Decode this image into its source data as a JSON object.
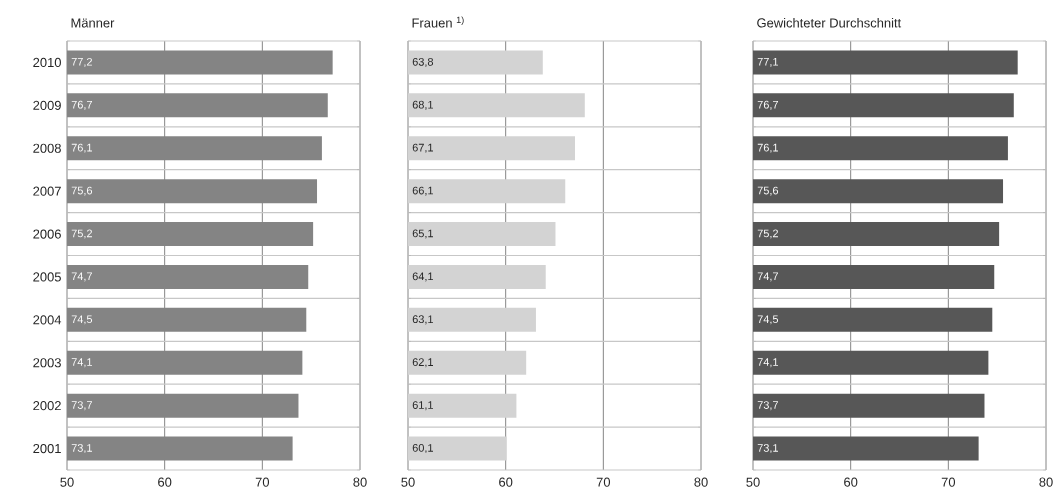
{
  "chart_data": [
    {
      "type": "bar",
      "orientation": "horizontal",
      "title": "Männer",
      "color": "#848484",
      "categories": [
        "2010",
        "2009",
        "2008",
        "2007",
        "2006",
        "2005",
        "2004",
        "2003",
        "2002",
        "2001"
      ],
      "values": [
        77.2,
        76.7,
        76.1,
        75.6,
        75.2,
        74.7,
        74.5,
        74.1,
        73.7,
        73.1
      ],
      "value_labels": [
        "77,2",
        "76,7",
        "76,1",
        "75,6",
        "75,2",
        "74,7",
        "74,5",
        "74,1",
        "73,7",
        "73,1"
      ],
      "xlim": [
        50,
        80
      ],
      "xticks": [
        50,
        60,
        70,
        80
      ],
      "grid": true
    },
    {
      "type": "bar",
      "orientation": "horizontal",
      "title": "Frauen $^{1)}$",
      "color": "#d3d3d3",
      "categories": [
        "2010",
        "2009",
        "2008",
        "2007",
        "2006",
        "2005",
        "2004",
        "2003",
        "2002",
        "2001"
      ],
      "values": [
        63.8,
        68.1,
        67.1,
        66.1,
        65.1,
        64.1,
        63.1,
        62.1,
        61.1,
        60.1
      ],
      "value_labels": [
        "63,8",
        "68,1",
        "67,1",
        "66,1",
        "65,1",
        "64,1",
        "63,1",
        "62,1",
        "61,1",
        "60,1"
      ],
      "xlim": [
        50,
        80
      ],
      "xticks": [
        50,
        60,
        70,
        80
      ],
      "grid": true,
      "tick_labels": "x"
    },
    {
      "type": "bar",
      "orientation": "horizontal",
      "title": "Gewichteter Durchschnitt",
      "color": "#575757",
      "categories": [
        "2010",
        "2009",
        "2008",
        "2007",
        "2006",
        "2005",
        "2004",
        "2003",
        "2002",
        "2001"
      ],
      "values": [
        77.1,
        76.7,
        76.1,
        75.6,
        75.2,
        74.7,
        74.5,
        74.1,
        73.7,
        73.1
      ],
      "value_labels": [
        "77,1",
        "76,7",
        "76,1",
        "75,6",
        "75,2",
        "74,7",
        "74,5",
        "74,1",
        "73,7",
        "73,1"
      ],
      "xlim": [
        50,
        80
      ],
      "xticks": [
        50,
        60,
        70,
        80
      ],
      "grid": true,
      "tick_labels": "x"
    }
  ]
}
